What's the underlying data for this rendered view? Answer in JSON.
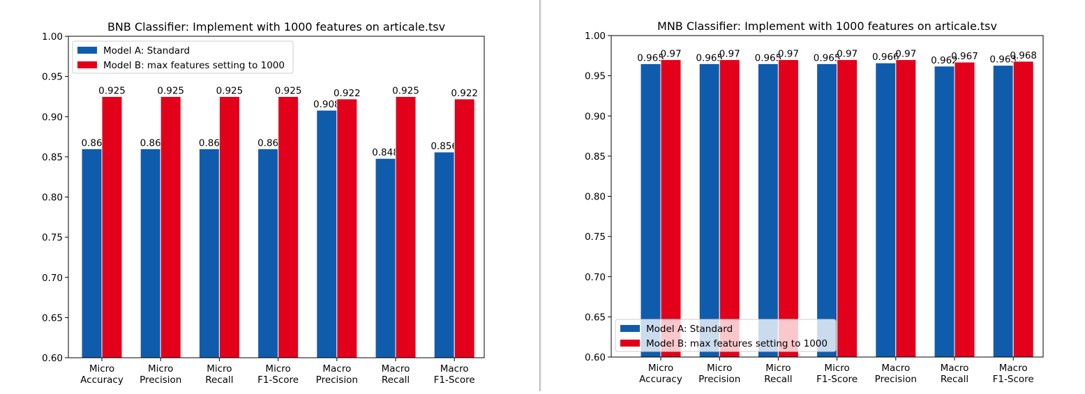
{
  "chart_data": [
    {
      "type": "bar",
      "title": "BNB Classifier: Implement with 1000 features on articale.tsv",
      "xlabel": "",
      "ylabel": "",
      "ylim": [
        0.6,
        1.0
      ],
      "yticks": [
        "0.60",
        "0.65",
        "0.70",
        "0.75",
        "0.80",
        "0.85",
        "0.90",
        "0.95",
        "1.00"
      ],
      "categories": [
        [
          "Micro",
          "Accuracy"
        ],
        [
          "Micro",
          "Precision"
        ],
        [
          "Micro",
          "Recall"
        ],
        [
          "Micro",
          "F1-Score"
        ],
        [
          "Macro",
          "Precision"
        ],
        [
          "Macro",
          "Recall"
        ],
        [
          "Macro",
          "F1-Score"
        ]
      ],
      "legend_position": "upper-left",
      "series": [
        {
          "name": "Model A: Standard",
          "color": "#0f5cad",
          "values": [
            0.86,
            0.86,
            0.86,
            0.86,
            0.908,
            0.848,
            0.856
          ],
          "labels": [
            "0.86",
            "0.86",
            "0.86",
            "0.86",
            "0.908",
            "0.848",
            "0.856"
          ]
        },
        {
          "name": "Model B: max features setting to 1000",
          "color": "#e2001a",
          "values": [
            0.925,
            0.925,
            0.925,
            0.925,
            0.922,
            0.925,
            0.922
          ],
          "labels": [
            "0.925",
            "0.925",
            "0.925",
            "0.925",
            "0.922",
            "0.925",
            "0.922"
          ]
        }
      ]
    },
    {
      "type": "bar",
      "title": "MNB Classifier: Implement with 1000 features on articale.tsv",
      "xlabel": "",
      "ylabel": "",
      "ylim": [
        0.6,
        1.0
      ],
      "yticks": [
        "0.60",
        "0.65",
        "0.70",
        "0.75",
        "0.80",
        "0.85",
        "0.90",
        "0.95",
        "1.00"
      ],
      "categories": [
        [
          "Micro",
          "Accuracy"
        ],
        [
          "Micro",
          "Precision"
        ],
        [
          "Micro",
          "Recall"
        ],
        [
          "Micro",
          "F1-Score"
        ],
        [
          "Macro",
          "Precision"
        ],
        [
          "Macro",
          "Recall"
        ],
        [
          "Macro",
          "F1-Score"
        ]
      ],
      "legend_position": "lower-left",
      "series": [
        {
          "name": "Model A: Standard",
          "color": "#0f5cad",
          "values": [
            0.965,
            0.965,
            0.965,
            0.965,
            0.966,
            0.962,
            0.963
          ],
          "labels": [
            "0.965",
            "0.965",
            "0.965",
            "0.965",
            "0.966",
            "0.962",
            "0.963"
          ]
        },
        {
          "name": "Model B: max features setting to 1000",
          "color": "#e2001a",
          "values": [
            0.97,
            0.97,
            0.97,
            0.97,
            0.97,
            0.967,
            0.968
          ],
          "labels": [
            "0.97",
            "0.97",
            "0.97",
            "0.97",
            "0.97",
            "0.967",
            "0.968"
          ]
        }
      ]
    }
  ]
}
